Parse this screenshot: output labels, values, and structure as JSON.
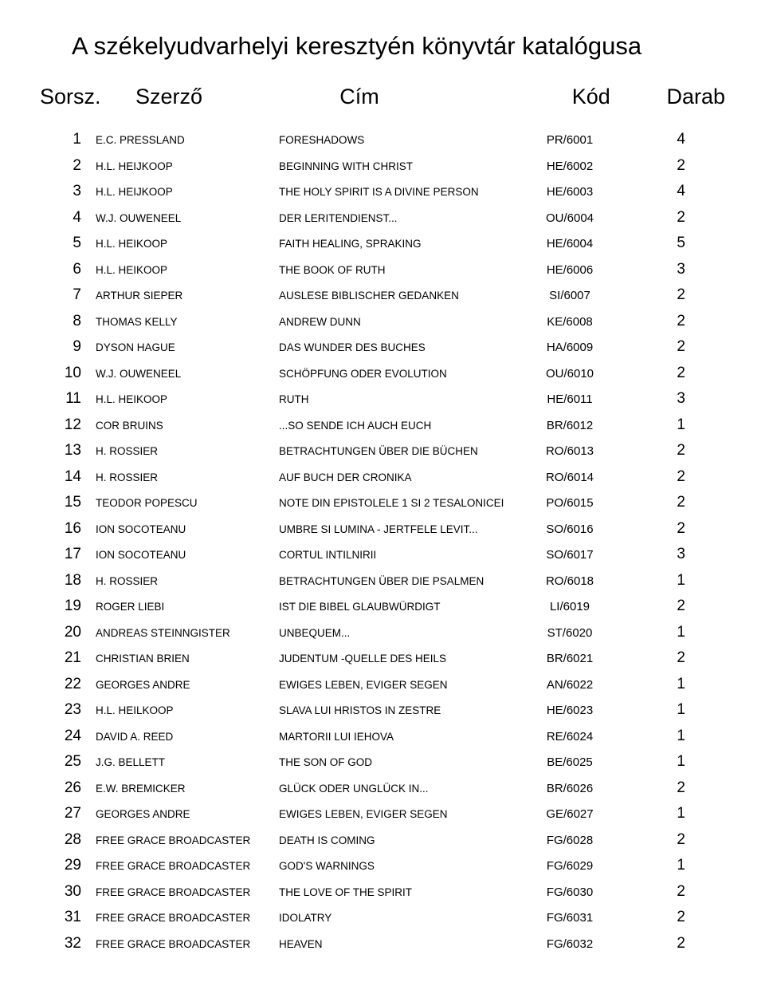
{
  "title": "A székelyudvarhelyi keresztyén könyvtár katalógusa",
  "headers": {
    "sorsz": "Sorsz.",
    "szerzo": "Szerző",
    "cim": "Cím",
    "kod": "Kód",
    "darab": "Darab"
  },
  "rows": [
    {
      "n": "1",
      "author": "E.C. PRESSLAND",
      "title": "FORESHADOWS",
      "code": "PR/6001",
      "count": "4"
    },
    {
      "n": "2",
      "author": "H.L. HEIJKOOP",
      "title": "BEGINNING WITH CHRIST",
      "code": "HE/6002",
      "count": "2"
    },
    {
      "n": "3",
      "author": "H.L. HEIJKOOP",
      "title": "THE HOLY SPIRIT IS A DIVINE PERSON",
      "code": "HE/6003",
      "count": "4"
    },
    {
      "n": "4",
      "author": "W.J. OUWENEEL",
      "title": "DER LERITENDIENST...",
      "code": "OU/6004",
      "count": "2"
    },
    {
      "n": "5",
      "author": "H.L. HEIKOOP",
      "title": "FAITH HEALING, SPRAKING",
      "code": "HE/6004",
      "count": "5"
    },
    {
      "n": "6",
      "author": "H.L. HEIKOOP",
      "title": "THE BOOK OF RUTH",
      "code": "HE/6006",
      "count": "3"
    },
    {
      "n": "7",
      "author": "ARTHUR SIEPER",
      "title": "AUSLESE BIBLISCHER GEDANKEN",
      "code": "SI/6007",
      "count": "2"
    },
    {
      "n": "8",
      "author": "THOMAS KELLY",
      "title": "ANDREW DUNN",
      "code": "KE/6008",
      "count": "2"
    },
    {
      "n": "9",
      "author": "DYSON HAGUE",
      "title": "DAS WUNDER DES BUCHES",
      "code": "HA/6009",
      "count": "2"
    },
    {
      "n": "10",
      "author": "W.J. OUWENEEL",
      "title": "SCHÖPFUNG ODER EVOLUTION",
      "code": "OU/6010",
      "count": "2"
    },
    {
      "n": "11",
      "author": "H.L. HEIKOOP",
      "title": "RUTH",
      "code": "HE/6011",
      "count": "3"
    },
    {
      "n": "12",
      "author": "COR BRUINS",
      "title": "...SO SENDE ICH AUCH EUCH",
      "code": "BR/6012",
      "count": "1"
    },
    {
      "n": "13",
      "author": "H. ROSSIER",
      "title": "BETRACHTUNGEN ÜBER DIE BÜCHEN",
      "code": "RO/6013",
      "count": "2"
    },
    {
      "n": "14",
      "author": "H. ROSSIER",
      "title": "AUF BUCH DER CRONIKA",
      "code": "RO/6014",
      "count": "2"
    },
    {
      "n": "15",
      "author": "TEODOR POPESCU",
      "title": "NOTE DIN EPISTOLELE 1 SI 2 TESALONICEI",
      "code": "PO/6015",
      "count": "2"
    },
    {
      "n": "16",
      "author": "ION SOCOTEANU",
      "title": "UMBRE SI LUMINA - JERTFELE LEVIT...",
      "code": "SO/6016",
      "count": "2"
    },
    {
      "n": "17",
      "author": "ION SOCOTEANU",
      "title": "CORTUL INTILNIRII",
      "code": "SO/6017",
      "count": "3"
    },
    {
      "n": "18",
      "author": "H. ROSSIER",
      "title": "BETRACHTUNGEN ÜBER DIE PSALMEN",
      "code": "RO/6018",
      "count": "1"
    },
    {
      "n": "19",
      "author": "ROGER LIEBI",
      "title": "IST DIE BIBEL GLAUBWÜRDIGT",
      "code": "LI/6019",
      "count": "2"
    },
    {
      "n": "20",
      "author": "ANDREAS STEINNGISTER",
      "title": "UNBEQUEM...",
      "code": "ST/6020",
      "count": "1"
    },
    {
      "n": "21",
      "author": "CHRISTIAN BRIEN",
      "title": "JUDENTUM -QUELLE DES HEILS",
      "code": "BR/6021",
      "count": "2"
    },
    {
      "n": "22",
      "author": "GEORGES ANDRE",
      "title": "EWIGES LEBEN, EVIGER SEGEN",
      "code": "AN/6022",
      "count": "1"
    },
    {
      "n": "23",
      "author": "H.L. HEILKOOP",
      "title": "SLAVA LUI HRISTOS IN ZESTRE",
      "code": "HE/6023",
      "count": "1"
    },
    {
      "n": "24",
      "author": "DAVID A. REED",
      "title": "MARTORII LUI IEHOVA",
      "code": "RE/6024",
      "count": "1"
    },
    {
      "n": "25",
      "author": "J.G. BELLETT",
      "title": "THE SON OF GOD",
      "code": "BE/6025",
      "count": "1"
    },
    {
      "n": "26",
      "author": "E.W. BREMICKER",
      "title": "GLÜCK ODER UNGLÜCK IN...",
      "code": "BR/6026",
      "count": "2"
    },
    {
      "n": "27",
      "author": "GEORGES ANDRE",
      "title": "EWIGES LEBEN, EVIGER SEGEN",
      "code": "GE/6027",
      "count": "1"
    },
    {
      "n": "28",
      "author": "FREE GRACE BROADCASTER",
      "title": "DEATH IS COMING",
      "code": "FG/6028",
      "count": "2"
    },
    {
      "n": "29",
      "author": "FREE GRACE BROADCASTER",
      "title": "GOD'S WARNINGS",
      "code": "FG/6029",
      "count": "1"
    },
    {
      "n": "30",
      "author": "FREE GRACE BROADCASTER",
      "title": "THE LOVE OF THE SPIRIT",
      "code": "FG/6030",
      "count": "2"
    },
    {
      "n": "31",
      "author": "FREE GRACE BROADCASTER",
      "title": "IDOLATRY",
      "code": "FG/6031",
      "count": "2"
    },
    {
      "n": "32",
      "author": "FREE GRACE BROADCASTER",
      "title": "HEAVEN",
      "code": "FG/6032",
      "count": "2"
    }
  ]
}
